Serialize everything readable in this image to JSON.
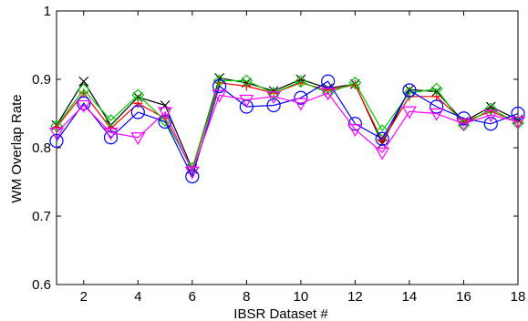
{
  "chart_data": {
    "type": "line",
    "xlabel": "IBSR Dataset #",
    "ylabel": "WM Overlap Rate",
    "xlim": [
      1,
      18
    ],
    "ylim": [
      0.6,
      1
    ],
    "xticks": [
      2,
      4,
      6,
      8,
      10,
      12,
      14,
      16,
      18
    ],
    "yticks": [
      0.6,
      0.7,
      0.8,
      0.9,
      1
    ],
    "ytick_labels": [
      "0.6",
      "0.7",
      "0.8",
      "0.9",
      "1"
    ],
    "grid": false,
    "x": [
      1,
      2,
      3,
      4,
      5,
      6,
      7,
      8,
      9,
      10,
      11,
      12,
      13,
      14,
      15,
      16,
      17,
      18
    ],
    "series": [
      {
        "color": "#000000",
        "marker": "x",
        "values": [
          0.833,
          0.897,
          0.833,
          0.874,
          0.862,
          0.769,
          0.902,
          0.895,
          0.883,
          0.9,
          0.887,
          0.893,
          0.806,
          0.885,
          0.882,
          0.838,
          0.86,
          0.841
        ]
      },
      {
        "color": "#ff0000",
        "marker": "plus",
        "values": [
          0.83,
          0.88,
          0.828,
          0.865,
          0.843,
          0.768,
          0.895,
          0.89,
          0.88,
          0.895,
          0.884,
          0.892,
          0.81,
          0.875,
          0.875,
          0.838,
          0.853,
          0.838
        ]
      },
      {
        "color": "#00cc00",
        "marker": "diamond",
        "values": [
          0.832,
          0.885,
          0.84,
          0.877,
          0.84,
          0.77,
          0.898,
          0.898,
          0.88,
          0.897,
          0.88,
          0.895,
          0.825,
          0.88,
          0.886,
          0.833,
          0.857,
          0.836
        ]
      },
      {
        "color": "#0000ff",
        "marker": "circle",
        "values": [
          0.81,
          0.865,
          0.815,
          0.852,
          0.838,
          0.758,
          0.89,
          0.86,
          0.862,
          0.873,
          0.897,
          0.835,
          0.813,
          0.884,
          0.86,
          0.843,
          0.835,
          0.85
        ]
      },
      {
        "color": "#ff00ff",
        "marker": "triangle-down",
        "values": [
          0.822,
          0.862,
          0.822,
          0.815,
          0.852,
          0.765,
          0.877,
          0.87,
          0.875,
          0.865,
          0.88,
          0.827,
          0.793,
          0.853,
          0.85,
          0.835,
          0.848,
          0.838
        ]
      }
    ]
  }
}
